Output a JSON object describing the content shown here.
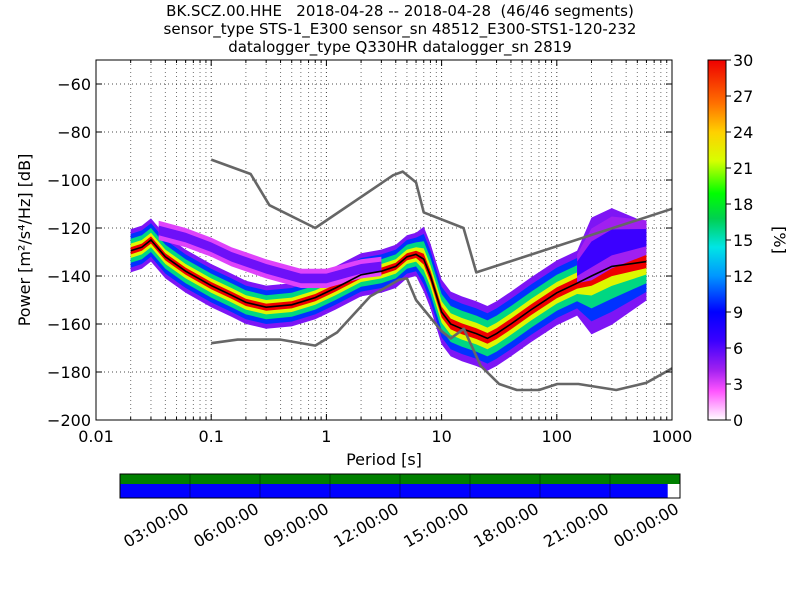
{
  "title": {
    "line1": "BK.SCZ.00.HHE   2018-04-28 -- 2018-04-28  (46/46 segments)",
    "line2": "sensor_type STS-1_E300 sensor_sn 48512_E300-STS1-120-232",
    "line3": "datalogger_type Q330HR datalogger_sn 2819"
  },
  "colors": {
    "model_curve": "#666666",
    "mode_curve": "#000000",
    "gap_bar_top": "#008000",
    "gap_bar_bottom": "#0000ff",
    "grid": "#000000"
  },
  "chart_data": {
    "type": "heatmap",
    "title": "BK.SCZ.00.HHE   2018-04-28 -- 2018-04-28  (46/46 segments)",
    "xlabel": "Period [s]",
    "ylabel": "Power [m²/s⁴/Hz] [dB]",
    "xscale": "log",
    "xlim": [
      0.01,
      1000
    ],
    "ylim": [
      -200,
      -50
    ],
    "x_ticks": [
      0.01,
      0.1,
      1,
      10,
      100,
      1000
    ],
    "x_tick_labels": [
      "0.01",
      "0.1",
      "1",
      "10",
      "100",
      "1000"
    ],
    "y_ticks": [
      -200,
      -180,
      -160,
      -140,
      -120,
      -100,
      -80,
      -60
    ],
    "y_tick_labels": [
      "−200",
      "−180",
      "−160",
      "−140",
      "−120",
      "−100",
      "−80",
      "−60"
    ],
    "grid": true,
    "colorbar": {
      "label": "[%]",
      "range": [
        0,
        30
      ],
      "ticks": [
        0,
        3,
        6,
        9,
        12,
        15,
        18,
        21,
        24,
        27,
        30
      ],
      "tick_labels": [
        "0",
        "3",
        "6",
        "9",
        "12",
        "15",
        "18",
        "21",
        "24",
        "27",
        "30"
      ]
    },
    "high_noise_model": [
      [
        0.1,
        -91.5
      ],
      [
        0.22,
        -97.5
      ],
      [
        0.32,
        -110.5
      ],
      [
        0.8,
        -120
      ],
      [
        3.8,
        -98
      ],
      [
        4.6,
        -96.5
      ],
      [
        6,
        -101
      ],
      [
        7,
        -113.5
      ],
      [
        15.5,
        -120
      ],
      [
        20,
        -138.5
      ],
      [
        1000,
        -112
      ]
    ],
    "low_noise_model": [
      [
        0.1,
        -168
      ],
      [
        0.17,
        -166.5
      ],
      [
        0.4,
        -166.5
      ],
      [
        0.8,
        -169
      ],
      [
        1.24,
        -163.5
      ],
      [
        2.4,
        -148.5
      ],
      [
        4.3,
        -141.5
      ],
      [
        5,
        -141
      ],
      [
        6,
        -150
      ],
      [
        10,
        -163
      ],
      [
        12,
        -166
      ],
      [
        15.6,
        -162
      ],
      [
        21.9,
        -177.5
      ],
      [
        31.6,
        -185
      ],
      [
        45,
        -187.5
      ],
      [
        70,
        -187.5
      ],
      [
        101,
        -185
      ],
      [
        154,
        -185
      ],
      [
        328,
        -187.5
      ],
      [
        600,
        -184.5
      ],
      [
        1000,
        -178.5
      ]
    ],
    "mode_curve": [
      [
        0.02,
        -129.5
      ],
      [
        0.025,
        -128
      ],
      [
        0.03,
        -125
      ],
      [
        0.04,
        -132
      ],
      [
        0.06,
        -138
      ],
      [
        0.1,
        -144
      ],
      [
        0.15,
        -148
      ],
      [
        0.2,
        -151
      ],
      [
        0.3,
        -153
      ],
      [
        0.5,
        -152
      ],
      [
        0.8,
        -149
      ],
      [
        1.2,
        -145
      ],
      [
        2,
        -139.5
      ],
      [
        3,
        -138
      ],
      [
        4,
        -136
      ],
      [
        5,
        -132
      ],
      [
        6,
        -131
      ],
      [
        7,
        -133
      ],
      [
        8,
        -140
      ],
      [
        10,
        -155
      ],
      [
        12,
        -160
      ],
      [
        15,
        -162
      ],
      [
        20,
        -164
      ],
      [
        25,
        -166
      ],
      [
        30,
        -164
      ],
      [
        40,
        -160
      ],
      [
        60,
        -154
      ],
      [
        100,
        -147
      ],
      [
        150,
        -143
      ],
      [
        200,
        -140
      ],
      [
        300,
        -136
      ],
      [
        600,
        -134
      ]
    ],
    "density_bands": [
      {
        "value": 30,
        "spread": 1.5
      },
      {
        "value": 22,
        "spread": 3
      },
      {
        "value": 16,
        "spread": 5
      },
      {
        "value": 10,
        "spread": 7
      },
      {
        "value": 5,
        "spread": 9
      }
    ],
    "upper_branch": [
      [
        0.035,
        -121
      ],
      [
        0.06,
        -124
      ],
      [
        0.1,
        -128
      ],
      [
        0.15,
        -132
      ],
      [
        0.3,
        -137
      ],
      [
        0.6,
        -141
      ],
      [
        1,
        -141
      ],
      [
        2,
        -137
      ],
      [
        3,
        -136
      ]
    ],
    "high_period_branch": [
      [
        150,
        -137
      ],
      [
        200,
        -131
      ],
      [
        300,
        -126
      ],
      [
        600,
        -124
      ]
    ],
    "time_axis": {
      "tick_labels": [
        "03:00:00",
        "06:00:00",
        "09:00:00",
        "12:00:00",
        "15:00:00",
        "18:00:00",
        "21:00:00",
        "00:00:00"
      ],
      "coverage_fraction": 0.978
    }
  }
}
